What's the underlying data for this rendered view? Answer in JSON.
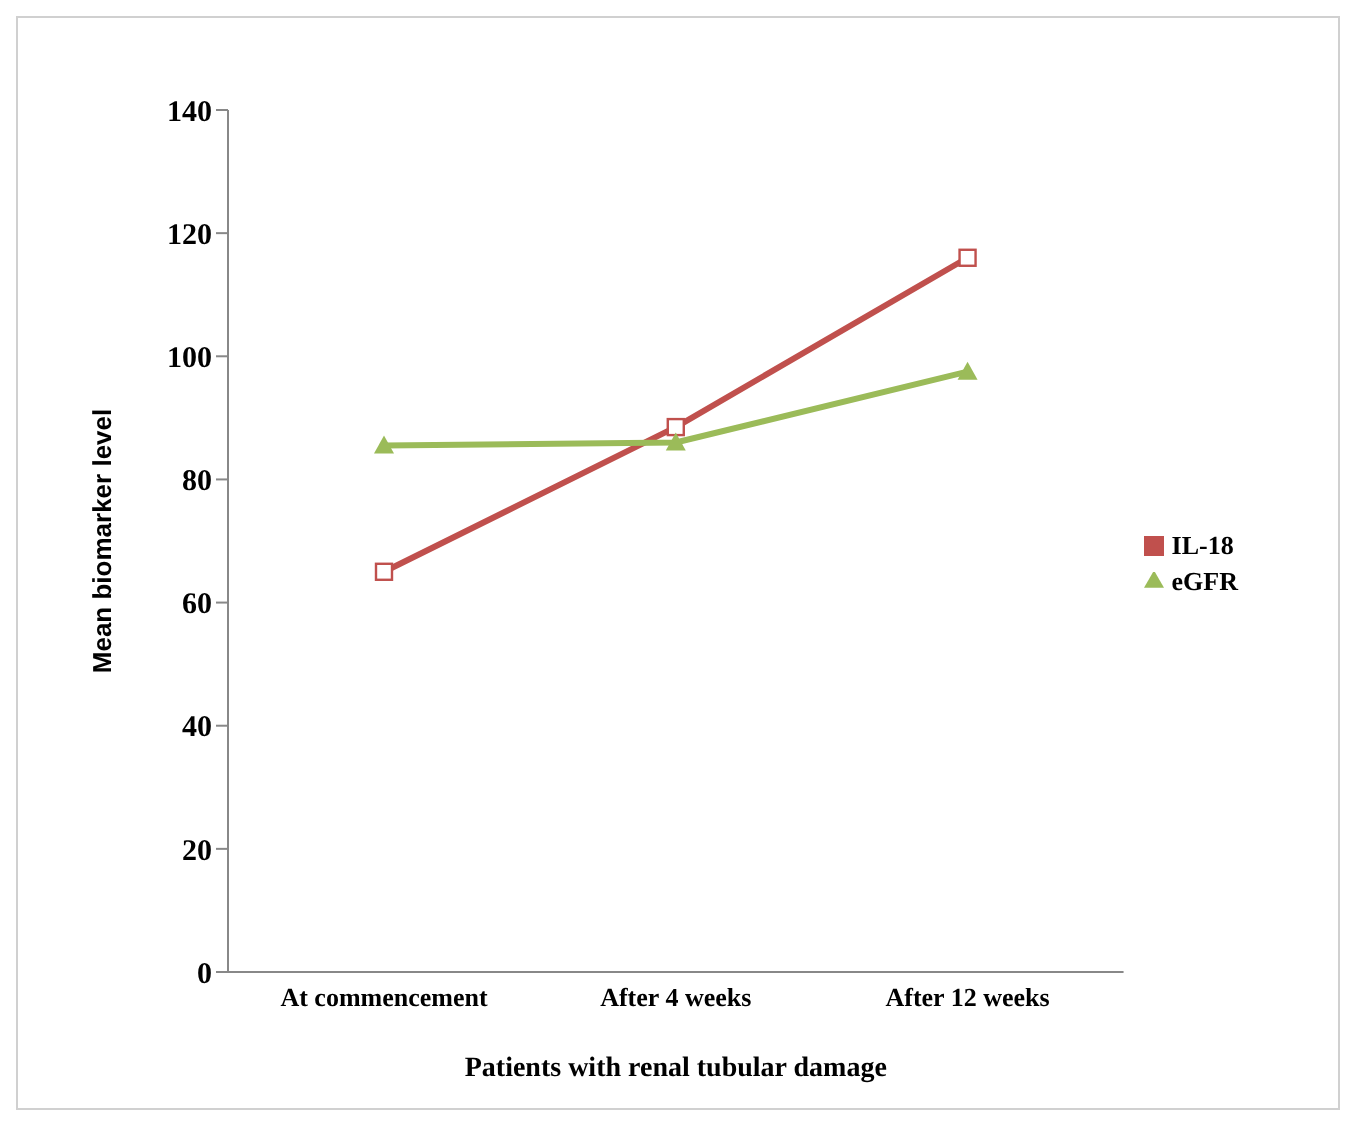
{
  "chart_data": {
    "type": "line",
    "xlabel": "Patients with  renal tubular  damage",
    "ylabel": "Mean biomarker level",
    "categories": [
      "At commencement",
      "After 4 weeks",
      "After 12 weeks"
    ],
    "series": [
      {
        "name": "IL-18",
        "color": "#c0504d",
        "values": [
          65,
          88.5,
          116
        ],
        "marker": "square"
      },
      {
        "name": "eGFR",
        "color": "#9bbb59",
        "values": [
          85.5,
          86,
          97.5
        ],
        "marker": "triangle"
      }
    ],
    "ylim": [
      0,
      140
    ],
    "yticks": [
      0,
      20,
      40,
      60,
      80,
      100,
      120,
      140
    ],
    "grid": false,
    "legend": "right"
  }
}
